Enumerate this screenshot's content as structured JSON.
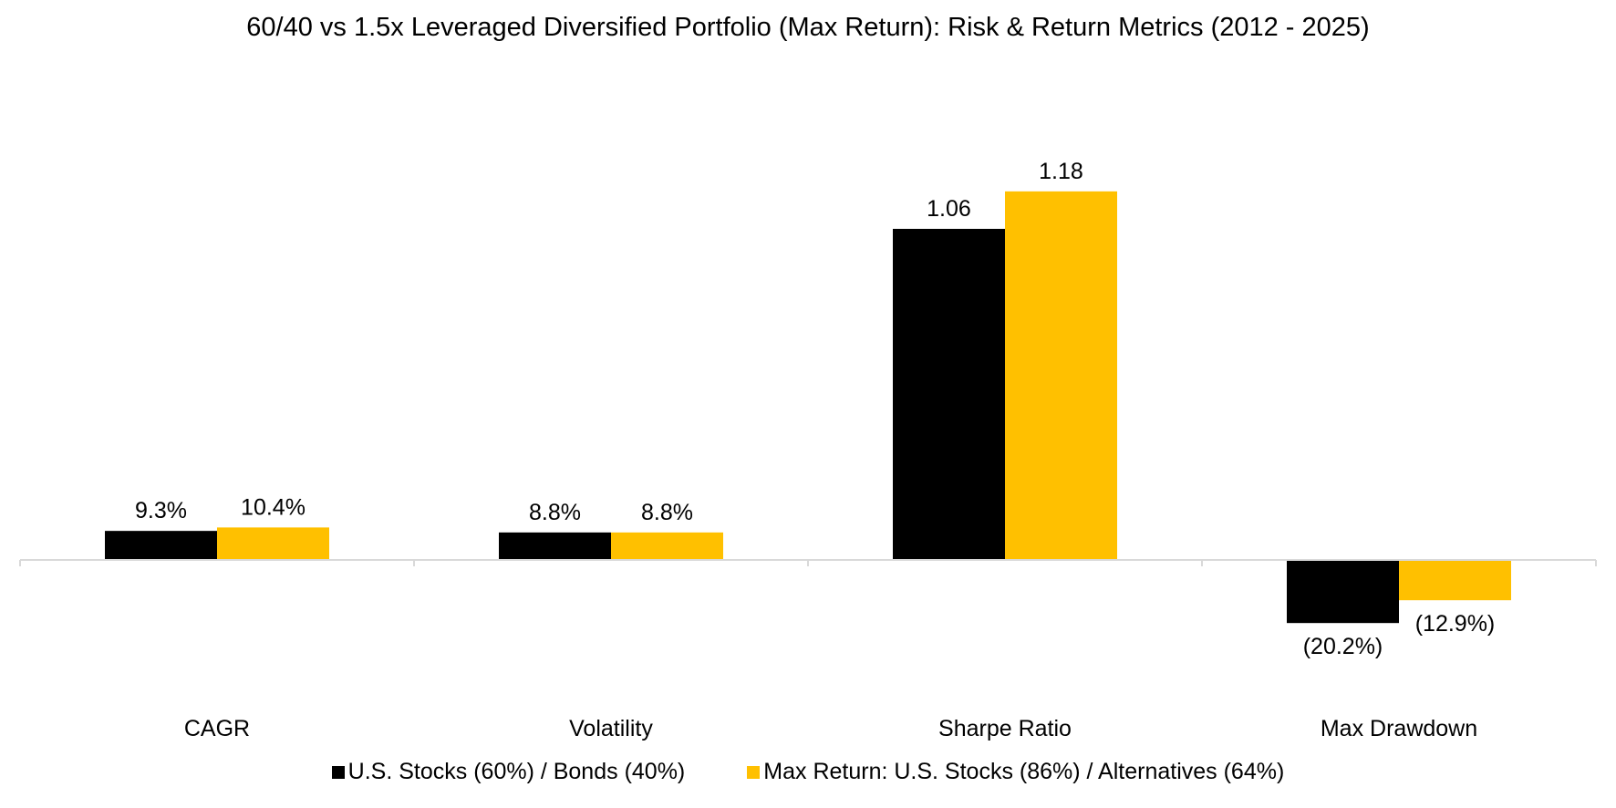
{
  "chart_data": {
    "type": "bar",
    "title": "60/40 vs 1.5x Leveraged Diversified Portfolio (Max Return): Risk & Return Metrics (2012 - 2025)",
    "categories": [
      "CAGR",
      "Volatility",
      "Sharpe Ratio",
      "Max Drawdown"
    ],
    "series": [
      {
        "name": "U.S. Stocks (60%) / Bonds (40%)",
        "color": "#000000",
        "values": [
          0.093,
          0.088,
          1.06,
          -0.202
        ],
        "labels": [
          "9.3%",
          "8.8%",
          "1.06",
          "(20.2%)"
        ]
      },
      {
        "name": "Max Return: U.S. Stocks (86%) / Alternatives (64%)",
        "color": "#FFC000",
        "values": [
          0.104,
          0.088,
          1.18,
          -0.129
        ],
        "labels": [
          "10.4%",
          "8.8%",
          "1.18",
          "(12.9%)"
        ]
      }
    ],
    "ylim": [
      -0.3,
      1.3
    ],
    "grid": false,
    "legend_position": "bottom"
  }
}
